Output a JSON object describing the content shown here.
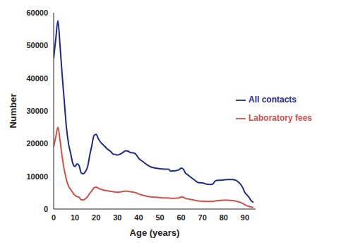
{
  "chart_data": {
    "type": "line",
    "x_label": "Age (years)",
    "y_label": "Number",
    "x": [
      0,
      1,
      2,
      3,
      4,
      5,
      6,
      7,
      8,
      9,
      10,
      11,
      12,
      13,
      14,
      15,
      16,
      17,
      18,
      19,
      20,
      21,
      22,
      23,
      24,
      25,
      26,
      27,
      28,
      29,
      30,
      31,
      32,
      33,
      34,
      35,
      36,
      37,
      38,
      39,
      40,
      42,
      44,
      46,
      48,
      50,
      52,
      54,
      55,
      57,
      59,
      60,
      61,
      62,
      63,
      65,
      67,
      68,
      70,
      72,
      74,
      75,
      76,
      78,
      80,
      82,
      84,
      86,
      87,
      88,
      89,
      90,
      91,
      92,
      93,
      94
    ],
    "series": [
      {
        "name": "All contacts",
        "color": "#1c2a8a",
        "values": [
          46000,
          52000,
          57500,
          50000,
          41000,
          33000,
          25000,
          20000,
          17000,
          14000,
          13000,
          13800,
          13200,
          11000,
          10800,
          11500,
          13000,
          16500,
          19500,
          22500,
          22800,
          21500,
          20500,
          19800,
          19200,
          18500,
          18000,
          17500,
          16800,
          16700,
          16500,
          16700,
          17000,
          17500,
          17800,
          17700,
          17300,
          17200,
          17100,
          16500,
          15500,
          14500,
          13500,
          12800,
          12500,
          12300,
          12200,
          12200,
          11600,
          11700,
          12000,
          12500,
          12200,
          11000,
          10500,
          9500,
          8500,
          8100,
          8000,
          7600,
          7500,
          7700,
          8600,
          8800,
          8900,
          9000,
          9000,
          8700,
          8200,
          7500,
          6500,
          5000,
          4300,
          3500,
          2500,
          2000
        ]
      },
      {
        "name": "Laboratory fees",
        "color": "#d0504a",
        "values": [
          19000,
          22000,
          25000,
          21000,
          16000,
          12000,
          9000,
          7000,
          6000,
          5000,
          4200,
          3800,
          3600,
          2800,
          2800,
          3200,
          3800,
          4800,
          5600,
          6500,
          6700,
          6400,
          6100,
          5900,
          5700,
          5600,
          5500,
          5400,
          5300,
          5200,
          5100,
          5200,
          5300,
          5400,
          5500,
          5400,
          5300,
          5200,
          5100,
          4900,
          4600,
          4200,
          3900,
          3700,
          3600,
          3500,
          3400,
          3400,
          3300,
          3300,
          3400,
          3700,
          3600,
          3300,
          3100,
          2900,
          2600,
          2500,
          2400,
          2300,
          2300,
          2300,
          2500,
          2600,
          2700,
          2700,
          2600,
          2400,
          2200,
          2000,
          1700,
          1300,
          1000,
          800,
          600,
          500
        ]
      }
    ],
    "xlim": [
      0,
      95
    ],
    "xticks": [
      0,
      10,
      20,
      30,
      40,
      50,
      60,
      70,
      80,
      90
    ],
    "ylim": [
      0,
      60000
    ],
    "yticks": [
      0,
      10000,
      20000,
      30000,
      40000,
      50000,
      60000
    ],
    "grid": false,
    "legend": "right"
  }
}
